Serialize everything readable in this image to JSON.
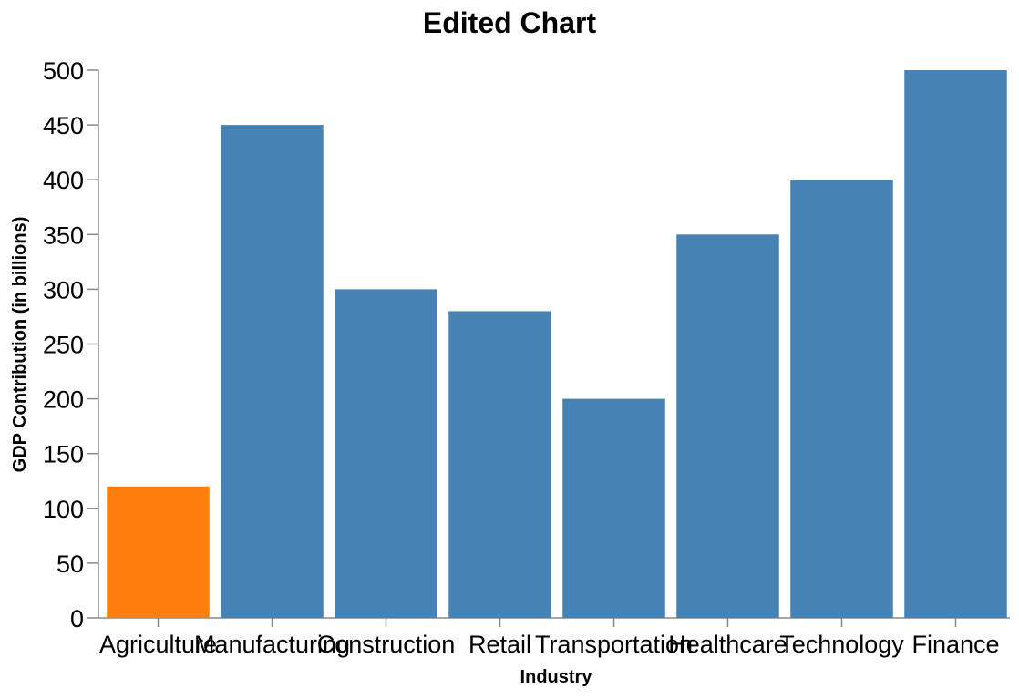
{
  "chart_data": {
    "type": "bar",
    "title": "Edited Chart",
    "xlabel": "Industry",
    "ylabel": "GDP Contribution (in billions)",
    "categories": [
      "Agriculture",
      "Manufacturing",
      "Construction",
      "Retail",
      "Transportation",
      "Healthcare",
      "Technology",
      "Finance"
    ],
    "values": [
      120,
      450,
      300,
      280,
      200,
      350,
      400,
      500
    ],
    "ylim": [
      0,
      500
    ],
    "yticks": [
      0,
      50,
      100,
      150,
      200,
      250,
      300,
      350,
      400,
      450,
      500
    ],
    "grid": false,
    "colors": {
      "default": "#4682b4",
      "highlight": "#ff7f0e"
    },
    "highlight_index": 0
  }
}
